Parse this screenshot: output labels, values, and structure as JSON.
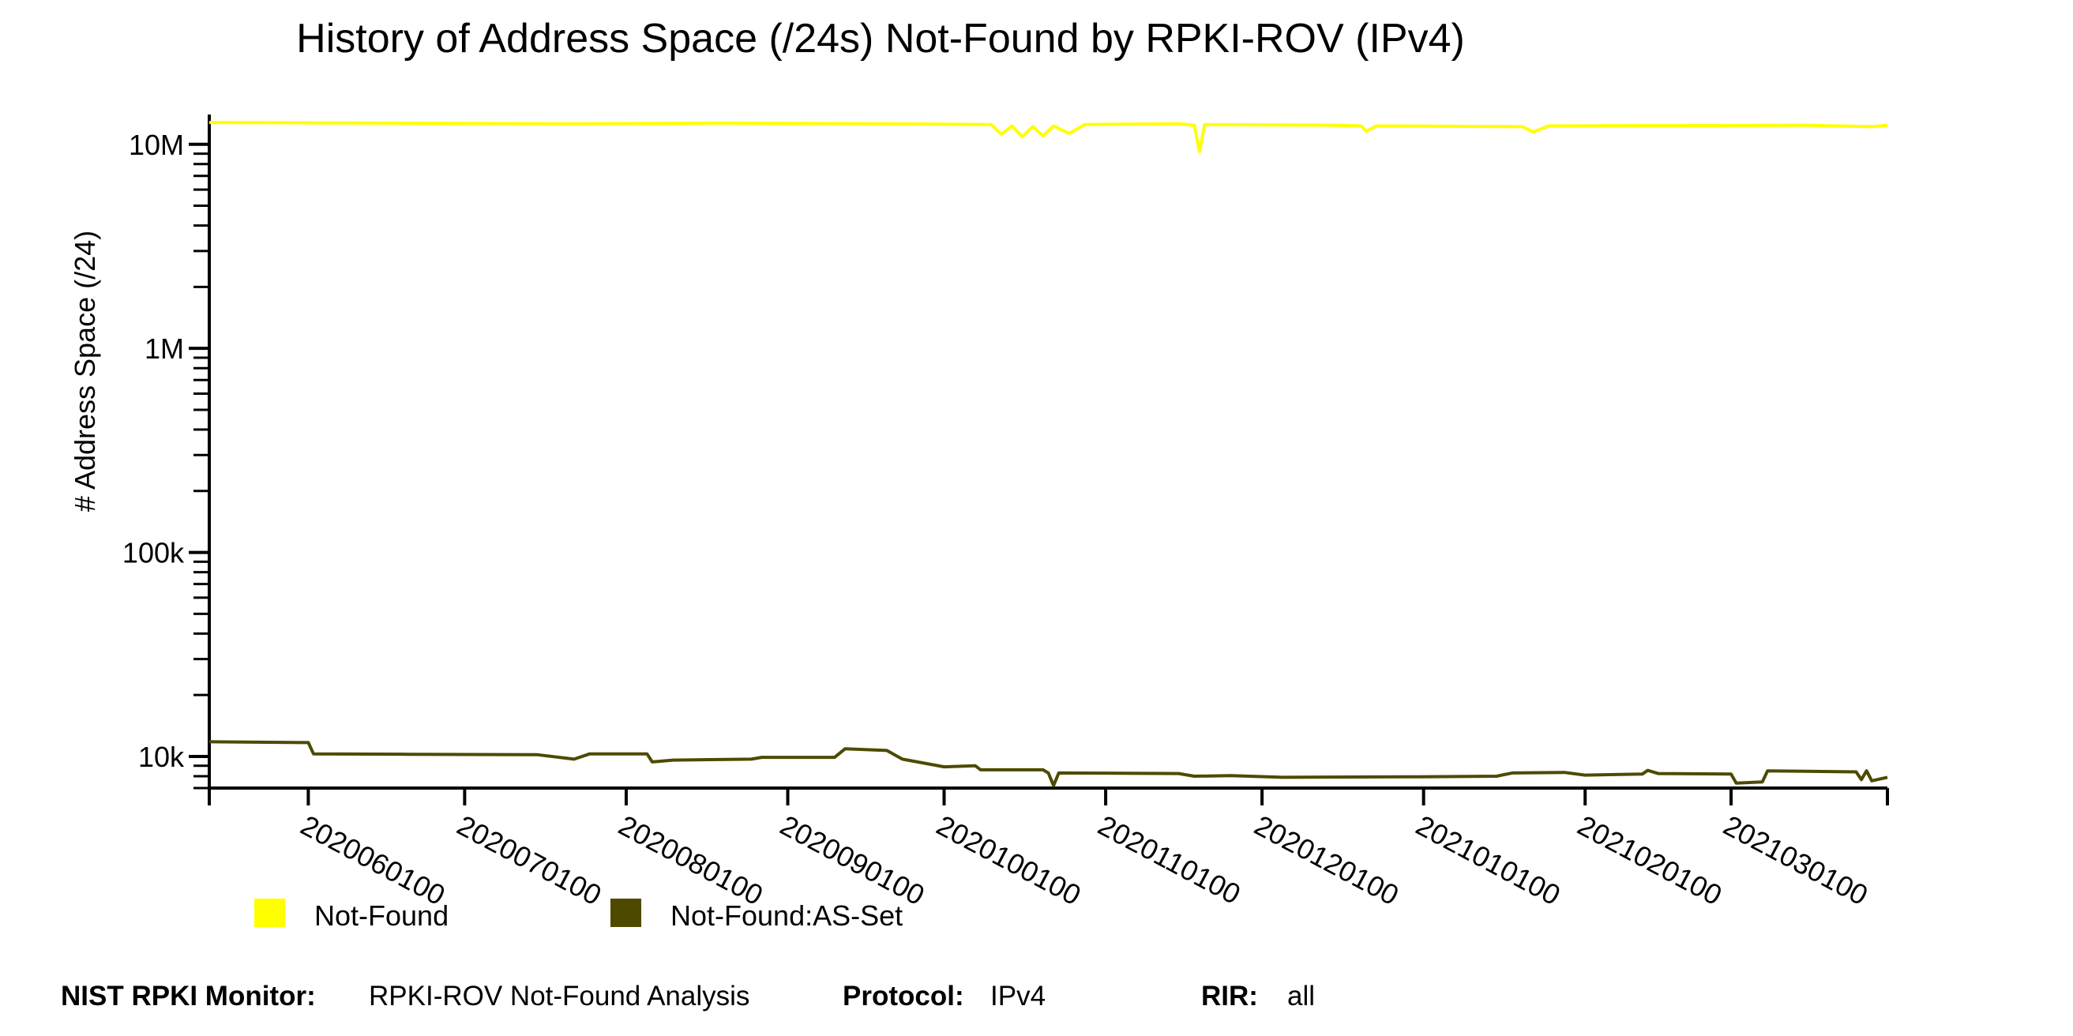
{
  "chart_data": {
    "type": "line",
    "title": "History of Address Space (/24s) Not-Found by RPKI-ROV (IPv4)",
    "ylabel": "# Address Space (/24)",
    "xlabel": "",
    "y_scale": "log",
    "ylim": [
      7000,
      14000000
    ],
    "xlim": [
      "2020-05-13",
      "2021-03-31"
    ],
    "y_ticks": [
      {
        "value": 10000,
        "label": "10k"
      },
      {
        "value": 100000,
        "label": "100k"
      },
      {
        "value": 1000000,
        "label": "1M"
      },
      {
        "value": 10000000,
        "label": "10M"
      }
    ],
    "x_ticks": [
      {
        "date": "2020-06-01",
        "label": "2020060100"
      },
      {
        "date": "2020-07-01",
        "label": "2020070100"
      },
      {
        "date": "2020-08-01",
        "label": "2020080100"
      },
      {
        "date": "2020-09-01",
        "label": "2020090100"
      },
      {
        "date": "2020-10-01",
        "label": "2020100100"
      },
      {
        "date": "2020-11-01",
        "label": "2020110100"
      },
      {
        "date": "2020-12-01",
        "label": "2020120100"
      },
      {
        "date": "2021-01-01",
        "label": "2021010100"
      },
      {
        "date": "2021-02-01",
        "label": "2021020100"
      },
      {
        "date": "2021-03-01",
        "label": "2021030100"
      }
    ],
    "grid": false,
    "legend_position": "bottom-left",
    "series": [
      {
        "name": "Not-Found",
        "color": "#ffff00",
        "points": [
          [
            "2020-05-13",
            12800000
          ],
          [
            "2020-06-15",
            12700000
          ],
          [
            "2020-07-20",
            12600000
          ],
          [
            "2020-08-20",
            12700000
          ],
          [
            "2020-09-20",
            12600000
          ],
          [
            "2020-10-10",
            12500000
          ],
          [
            "2020-10-12",
            11200000
          ],
          [
            "2020-10-14",
            12300000
          ],
          [
            "2020-10-16",
            10900000
          ],
          [
            "2020-10-18",
            12200000
          ],
          [
            "2020-10-20",
            11000000
          ],
          [
            "2020-10-22",
            12300000
          ],
          [
            "2020-10-25",
            11300000
          ],
          [
            "2020-10-28",
            12500000
          ],
          [
            "2020-11-15",
            12600000
          ],
          [
            "2020-11-18",
            12400000
          ],
          [
            "2020-11-19",
            9200000
          ],
          [
            "2020-11-20",
            12500000
          ],
          [
            "2020-12-15",
            12400000
          ],
          [
            "2020-12-20",
            12300000
          ],
          [
            "2020-12-21",
            11600000
          ],
          [
            "2020-12-23",
            12300000
          ],
          [
            "2021-01-20",
            12200000
          ],
          [
            "2021-01-22",
            11500000
          ],
          [
            "2021-01-25",
            12300000
          ],
          [
            "2021-03-15",
            12400000
          ],
          [
            "2021-03-28",
            12200000
          ],
          [
            "2021-03-31",
            12400000
          ]
        ]
      },
      {
        "name": "Not-Found:AS-Set",
        "color": "#4d4a00",
        "points": [
          [
            "2020-05-13",
            11800
          ],
          [
            "2020-06-01",
            11700
          ],
          [
            "2020-06-02",
            10300
          ],
          [
            "2020-06-20",
            10250
          ],
          [
            "2020-07-15",
            10200
          ],
          [
            "2020-07-22",
            9700
          ],
          [
            "2020-07-25",
            10300
          ],
          [
            "2020-08-05",
            10300
          ],
          [
            "2020-08-06",
            9400
          ],
          [
            "2020-08-10",
            9600
          ],
          [
            "2020-08-25",
            9700
          ],
          [
            "2020-08-27",
            9900
          ],
          [
            "2020-09-10",
            9900
          ],
          [
            "2020-09-12",
            10900
          ],
          [
            "2020-09-20",
            10700
          ],
          [
            "2020-09-23",
            9700
          ],
          [
            "2020-10-01",
            8900
          ],
          [
            "2020-10-07",
            9000
          ],
          [
            "2020-10-08",
            8600
          ],
          [
            "2020-10-20",
            8600
          ],
          [
            "2020-10-21",
            8300
          ],
          [
            "2020-10-22",
            7200
          ],
          [
            "2020-10-23",
            8300
          ],
          [
            "2020-11-15",
            8250
          ],
          [
            "2020-11-18",
            8000
          ],
          [
            "2020-11-25",
            8050
          ],
          [
            "2020-12-05",
            7900
          ],
          [
            "2020-12-31",
            7950
          ],
          [
            "2021-01-15",
            8000
          ],
          [
            "2021-01-18",
            8300
          ],
          [
            "2021-01-28",
            8350
          ],
          [
            "2021-02-01",
            8100
          ],
          [
            "2021-02-12",
            8200
          ],
          [
            "2021-02-13",
            8550
          ],
          [
            "2021-02-15",
            8250
          ],
          [
            "2021-03-01",
            8200
          ],
          [
            "2021-03-02",
            7400
          ],
          [
            "2021-03-07",
            7500
          ],
          [
            "2021-03-08",
            8500
          ],
          [
            "2021-03-25",
            8400
          ],
          [
            "2021-03-26",
            7700
          ],
          [
            "2021-03-27",
            8500
          ],
          [
            "2021-03-28",
            7600
          ],
          [
            "2021-03-31",
            7900
          ]
        ]
      }
    ]
  },
  "footer": {
    "monitor_label": "NIST RPKI Monitor:",
    "monitor_value": "RPKI-ROV Not-Found Analysis",
    "protocol_label": "Protocol:",
    "protocol_value": "IPv4",
    "rir_label": "RIR:",
    "rir_value": "all"
  }
}
